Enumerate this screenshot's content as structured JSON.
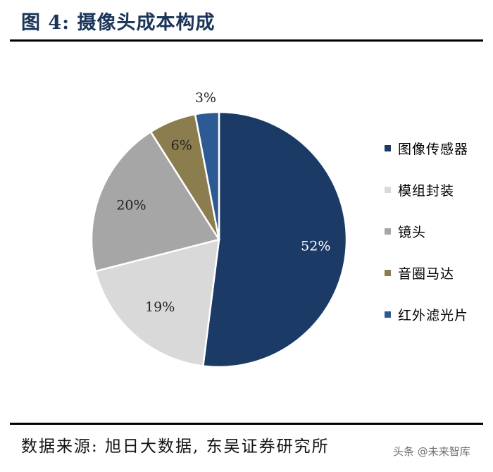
{
  "header": {
    "title": "图 4:  摄像头成本构成"
  },
  "footer": {
    "source": "数据来源:  旭日大数据,  东吴证券研究所"
  },
  "watermark": {
    "text": "头条 @未来智库"
  },
  "chart_data": {
    "type": "pie",
    "title": "",
    "legend_position": "right",
    "slices": [
      {
        "label": "图像传感器",
        "value": 52,
        "value_label": "52%",
        "color": "#1b3a66"
      },
      {
        "label": "模组封装",
        "value": 19,
        "value_label": "19%",
        "color": "#d9d9d9"
      },
      {
        "label": "镜头",
        "value": 20,
        "value_label": "20%",
        "color": "#a6a6a6"
      },
      {
        "label": "音圈马达",
        "value": 6,
        "value_label": "6%",
        "color": "#8c7d4f"
      },
      {
        "label": "红外滤光片",
        "value": 3,
        "value_label": "3%",
        "color": "#2e5a93"
      }
    ]
  }
}
